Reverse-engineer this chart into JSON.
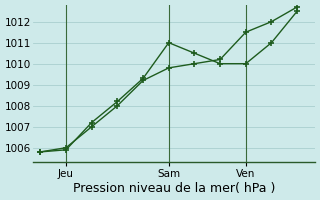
{
  "xlabel": "Pression niveau de la mer( hPa )",
  "background_color": "#ceeaea",
  "grid_color": "#aacfcf",
  "line_color": "#1e5c1e",
  "line1_x": [
    0,
    1,
    2,
    3,
    4,
    5,
    6,
    7,
    8,
    9,
    10
  ],
  "line1_y": [
    1005.8,
    1005.9,
    1007.2,
    1008.2,
    1009.3,
    1011.0,
    1010.5,
    1010.0,
    1010.0,
    1011.0,
    1012.5
  ],
  "line2_x": [
    0,
    1,
    2,
    3,
    4,
    5,
    6,
    7,
    8,
    9,
    10
  ],
  "line2_y": [
    1005.8,
    1006.0,
    1007.0,
    1008.0,
    1009.2,
    1009.8,
    1010.0,
    1010.2,
    1011.5,
    1012.0,
    1012.7
  ],
  "xtick_positions": [
    1,
    5,
    8
  ],
  "xtick_labels": [
    "Jeu",
    "Sam",
    "Ven"
  ],
  "vline_positions": [
    1,
    5,
    8
  ],
  "ylim_min": 1005.3,
  "ylim_max": 1012.8,
  "ytick_values": [
    1006,
    1007,
    1008,
    1009,
    1010,
    1011,
    1012
  ],
  "tick_fontsize": 7.5,
  "xlabel_fontsize": 9,
  "marker": "+",
  "markersize": 5,
  "linewidth": 1.0
}
